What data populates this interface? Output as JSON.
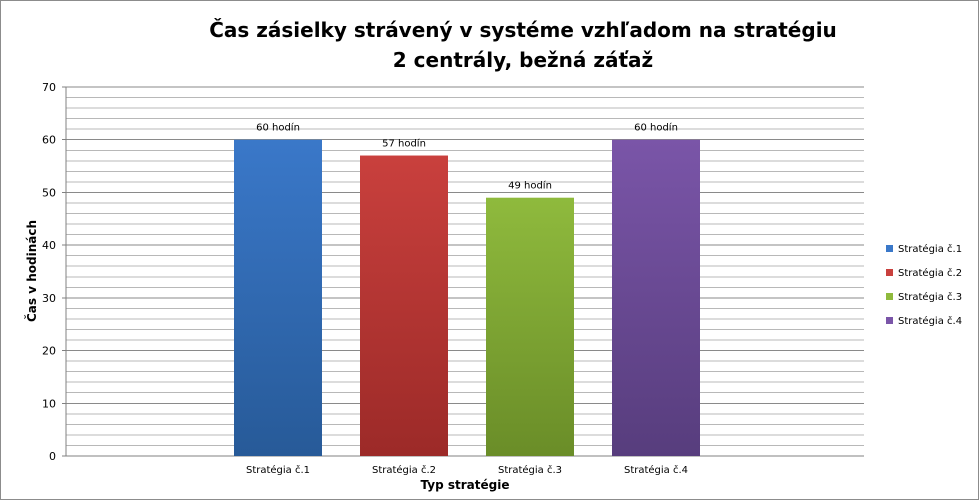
{
  "chart_data": {
    "type": "bar",
    "title": "Čas zásielky strávený v systéme vzhľadom na stratégiu",
    "subtitle": "2 centrály,  bežná záťaž",
    "xlabel": "Typ stratégie",
    "ylabel": "Čas v hodinách",
    "categories": [
      "Stratégia č.1",
      "Stratégia č.2",
      "Stratégia č.3",
      "Stratégia č.4"
    ],
    "values": [
      60,
      57,
      49,
      60
    ],
    "data_labels": [
      "60 hodín",
      "57 hodín",
      "49 hodín",
      "60 hodín"
    ],
    "ylim": [
      0,
      70
    ],
    "yticks": [
      0,
      10,
      20,
      30,
      40,
      50,
      60,
      70
    ],
    "minor_gridlines": true,
    "legend_position": "right",
    "legend": [
      "Stratégia č.1",
      "Stratégia č.2",
      "Stratégia č.3",
      "Stratégia č.4"
    ],
    "colors": [
      "#3a78c9",
      "#c9403d",
      "#8fba3d",
      "#7a55a8"
    ],
    "colors_dark": [
      "#275a98",
      "#9c2a28",
      "#6a8d28",
      "#573d7d"
    ]
  }
}
